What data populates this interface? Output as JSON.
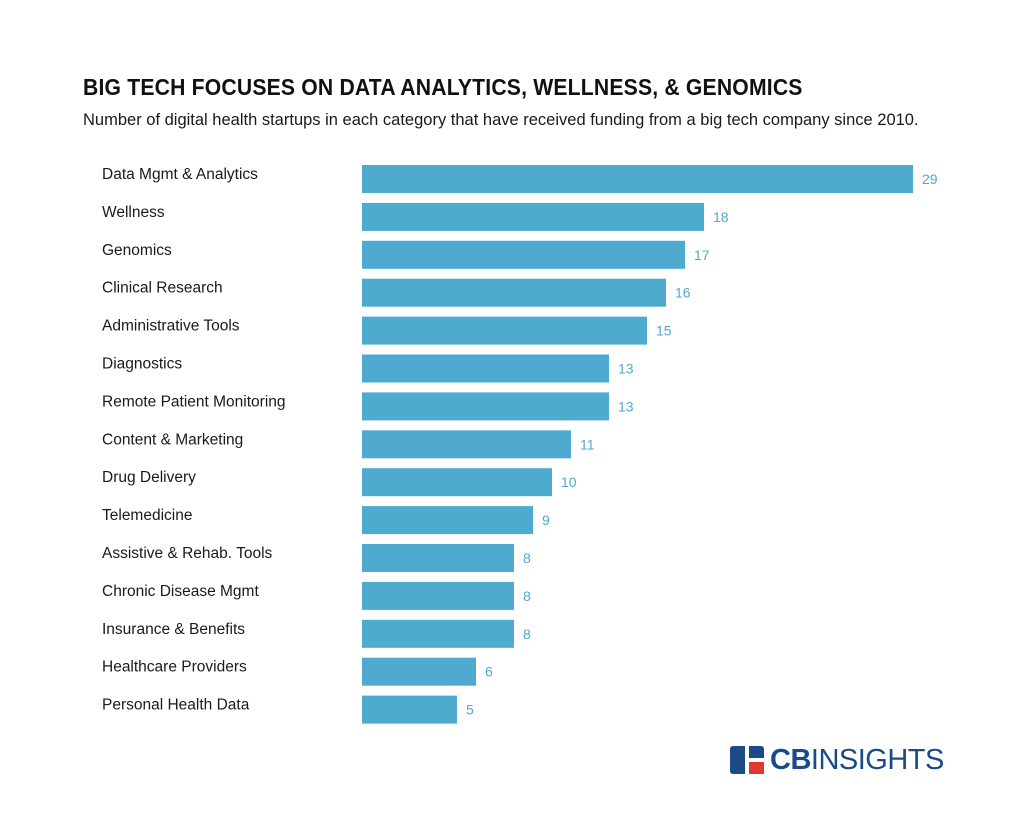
{
  "title": "BIG TECH FOCUSES ON DATA ANALYTICS, WELLNESS, & GENOMICS",
  "subtitle": "Number of digital health startups in each category that have received funding from a big tech company since 2010.",
  "brand": {
    "cb": "CB",
    "insights": "INSIGHTS",
    "color": "#1a4b87",
    "accent": "#e03a2f"
  },
  "colors": {
    "bar": "#4faad0",
    "value_label": "#4faad0"
  },
  "chart_data": {
    "type": "bar",
    "orientation": "horizontal",
    "categories": [
      "Data Mgmt & Analytics",
      "Wellness",
      "Genomics",
      "Clinical Research",
      "Administrative Tools",
      "Diagnostics",
      "Remote Patient Monitoring",
      "Content & Marketing",
      "Drug Delivery",
      "Telemedicine",
      "Assistive & Rehab. Tools",
      "Chronic Disease Mgmt",
      "Insurance & Benefits",
      "Healthcare Providers",
      "Personal Health Data"
    ],
    "values": [
      29,
      18,
      17,
      16,
      15,
      13,
      13,
      11,
      10,
      9,
      8,
      8,
      8,
      6,
      5
    ],
    "title": "BIG TECH FOCUSES ON DATA ANALYTICS, WELLNESS, & GENOMICS",
    "xlabel": "",
    "ylabel": "",
    "xlim": [
      0,
      29
    ],
    "grid": false,
    "legend": "none"
  }
}
